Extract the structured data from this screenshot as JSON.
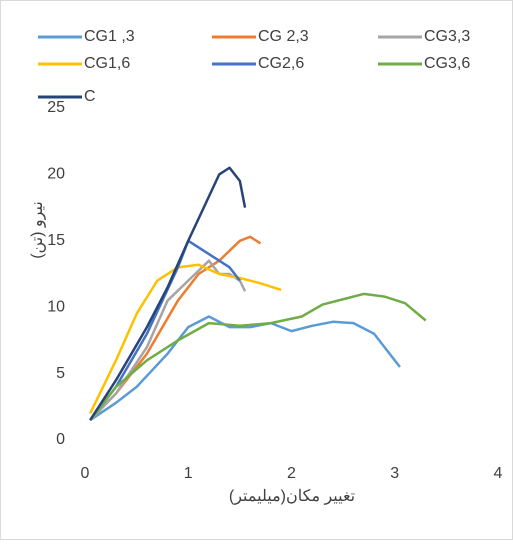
{
  "chart_data": {
    "type": "line",
    "xlabel": "تغییر مکان(میلیمتر)",
    "ylabel": "نیرو (تن)",
    "xlim": [
      0,
      4
    ],
    "xticks": [
      0,
      1,
      2,
      3,
      4
    ],
    "ylim": [
      0,
      25
    ],
    "yticks": [
      0,
      5,
      10,
      15,
      20,
      25
    ],
    "grid": false,
    "series": [
      {
        "name": "CG1 ,3",
        "color": "#5b9bd5",
        "x": [
          0.05,
          0.3,
          0.5,
          0.8,
          1.0,
          1.2,
          1.4,
          1.6,
          1.8,
          2.0,
          2.2,
          2.4,
          2.6,
          2.8,
          2.95,
          3.05
        ],
        "values": [
          1.5,
          2.8,
          4,
          6.5,
          8.5,
          9.3,
          8.5,
          8.5,
          8.8,
          8.2,
          8.6,
          8.9,
          8.8,
          8,
          6.5,
          5.5
        ]
      },
      {
        "name": "CG 2,3",
        "color": "#ed7d31",
        "x": [
          0.05,
          0.3,
          0.6,
          0.9,
          1.1,
          1.3,
          1.5,
          1.6,
          1.7
        ],
        "values": [
          1.5,
          3.5,
          6.5,
          10.5,
          12.5,
          13.5,
          15,
          15.3,
          14.8
        ]
      },
      {
        "name": "CG3,3",
        "color": "#a5a5a5",
        "x": [
          0.05,
          0.3,
          0.6,
          0.8,
          1.0,
          1.2,
          1.3,
          1.4,
          1.5,
          1.55
        ],
        "values": [
          1.5,
          3.5,
          7,
          10.5,
          12,
          13.5,
          12.5,
          12.5,
          12,
          11.2
        ]
      },
      {
        "name": "CG1,6",
        "color": "#ffc000",
        "x": [
          0.05,
          0.3,
          0.5,
          0.7,
          0.9,
          1.1,
          1.3,
          1.5,
          1.7,
          1.9
        ],
        "values": [
          2,
          6,
          9.5,
          12,
          13,
          13.2,
          12.5,
          12.2,
          11.8,
          11.3
        ]
      },
      {
        "name": "CG2,6",
        "color": "#4472c4",
        "x": [
          0.05,
          0.3,
          0.6,
          0.9,
          1.0,
          1.2,
          1.4,
          1.5
        ],
        "values": [
          1.5,
          4,
          8,
          13,
          15,
          14,
          13,
          12
        ]
      },
      {
        "name": "CG3,6",
        "color": "#70ad47",
        "x": [
          0.05,
          0.3,
          0.6,
          0.9,
          1.2,
          1.5,
          1.8,
          2.1,
          2.3,
          2.5,
          2.7,
          2.9,
          3.1,
          3.3
        ],
        "values": [
          1.5,
          4,
          6,
          7.5,
          8.8,
          8.6,
          8.8,
          9.3,
          10.2,
          10.6,
          11,
          10.8,
          10.3,
          9
        ]
      },
      {
        "name": "C",
        "color": "#264478",
        "x": [
          0.05,
          0.3,
          0.6,
          0.8,
          1.0,
          1.15,
          1.3,
          1.4,
          1.5,
          1.55
        ],
        "values": [
          1.5,
          4.5,
          8.5,
          11.5,
          15,
          17.5,
          20,
          20.5,
          19.5,
          17.5
        ]
      }
    ]
  }
}
